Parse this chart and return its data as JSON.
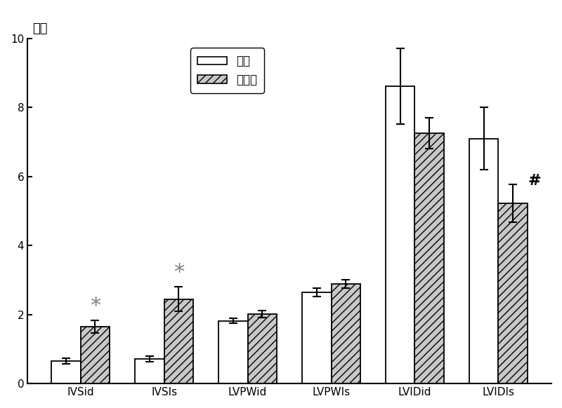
{
  "categories": [
    "IVSid",
    "IVSIs",
    "LVPWid",
    "LVPWIs",
    "LVIDid",
    "LVIDIs"
  ],
  "control_values": [
    0.65,
    0.72,
    1.82,
    2.65,
    8.62,
    7.1
  ],
  "stem_values": [
    1.65,
    2.45,
    2.02,
    2.88,
    7.25,
    5.22
  ],
  "control_errors": [
    0.08,
    0.08,
    0.08,
    0.12,
    1.1,
    0.9
  ],
  "stem_errors": [
    0.18,
    0.35,
    0.1,
    0.12,
    0.45,
    0.55
  ],
  "ylabel_cn": "毫米",
  "ylim": [
    0,
    10
  ],
  "yticks": [
    0,
    2,
    4,
    6,
    8,
    10
  ],
  "legend_control": "对照",
  "legend_stem": "干细胞",
  "bar_width": 0.35,
  "control_color": "#ffffff",
  "stem_hatch": "///",
  "stem_facecolor": "#c8c8c8",
  "background_color": "#ffffff"
}
